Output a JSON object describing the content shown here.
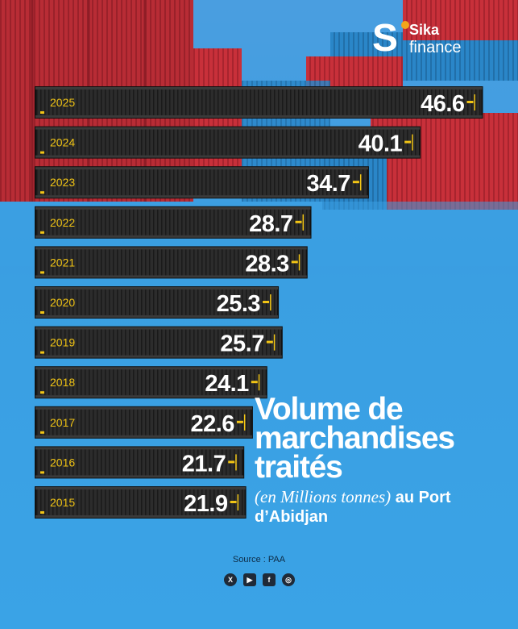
{
  "brand": {
    "logo_s": "S",
    "logo_sika": "Sika",
    "logo_finance": "finance"
  },
  "colors": {
    "background": "#3a9fe2",
    "bar": "#2c2c2c",
    "year_text": "#f2c515",
    "value_text": "#ffffff",
    "accent": "#f2c515"
  },
  "title": "Volume de marchandises traités",
  "subtitle_italic": "(en Millions tonnes)",
  "subtitle_rest": " au Port d’Abidjan",
  "source": "Source : PAA",
  "socials": [
    {
      "icon": "x-icon",
      "glyph": "X"
    },
    {
      "icon": "youtube-icon",
      "glyph": "▶"
    },
    {
      "icon": "facebook-icon",
      "glyph": "f"
    },
    {
      "icon": "instagram-icon",
      "glyph": "◎"
    }
  ],
  "chart_data": {
    "type": "bar",
    "orientation": "horizontal",
    "title": "Volume de marchandises traités",
    "categories": [
      "2025",
      "2024",
      "2023",
      "2022",
      "2021",
      "2020",
      "2019",
      "2018",
      "2017",
      "2016",
      "2015"
    ],
    "values": [
      46.6,
      40.1,
      34.7,
      28.7,
      28.3,
      25.3,
      25.7,
      24.1,
      22.6,
      21.7,
      21.9
    ],
    "value_labels": [
      "46.6",
      "40.1",
      "34.7",
      "28.7",
      "28.3",
      "25.3",
      "25.7",
      "24.1",
      "22.6",
      "21.7",
      "21.9"
    ],
    "xlabel": "",
    "ylabel": "",
    "grid": false,
    "legend": "none"
  }
}
